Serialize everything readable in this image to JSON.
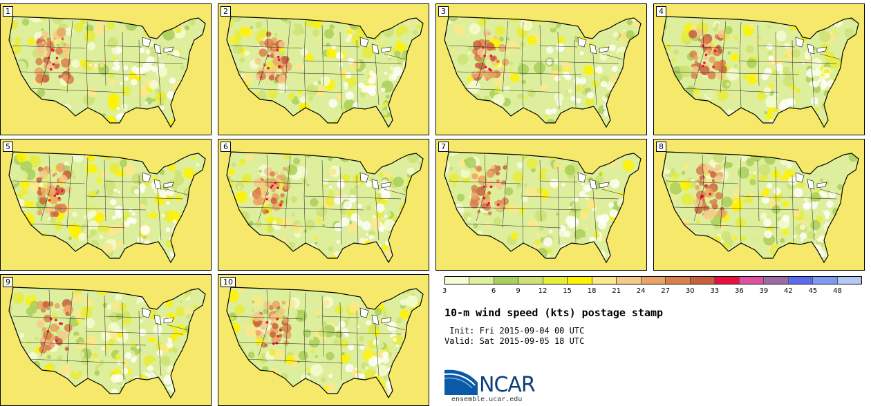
{
  "title": "10-m wind speed (kts) postage stamp",
  "init_label": " Init: Fri 2015-09-04 00 UTC",
  "valid_label": "Valid: Sat 2015-09-05 18 UTC",
  "members": [
    "1",
    "2",
    "3",
    "4",
    "5",
    "6",
    "7",
    "8",
    "9",
    "10"
  ],
  "colorbar": {
    "ticks": [
      "3",
      "6",
      "9",
      "12",
      "15",
      "18",
      "21",
      "24",
      "27",
      "30",
      "33",
      "36",
      "39",
      "42",
      "45",
      "48"
    ],
    "colors": [
      "#f6fbd4",
      "#ddef9c",
      "#a9cf5c",
      "#cde274",
      "#e8ec3a",
      "#fff200",
      "#fbe88a",
      "#f4c98a",
      "#e9a464",
      "#d9804c",
      "#c8603e",
      "#e8103e",
      "#e050a0",
      "#9c6aa4",
      "#5c6af0",
      "#7d9af4",
      "#b4c8f4"
    ]
  },
  "logo": {
    "text": "NCAR",
    "url": "ensemble.ucar.edu"
  }
}
